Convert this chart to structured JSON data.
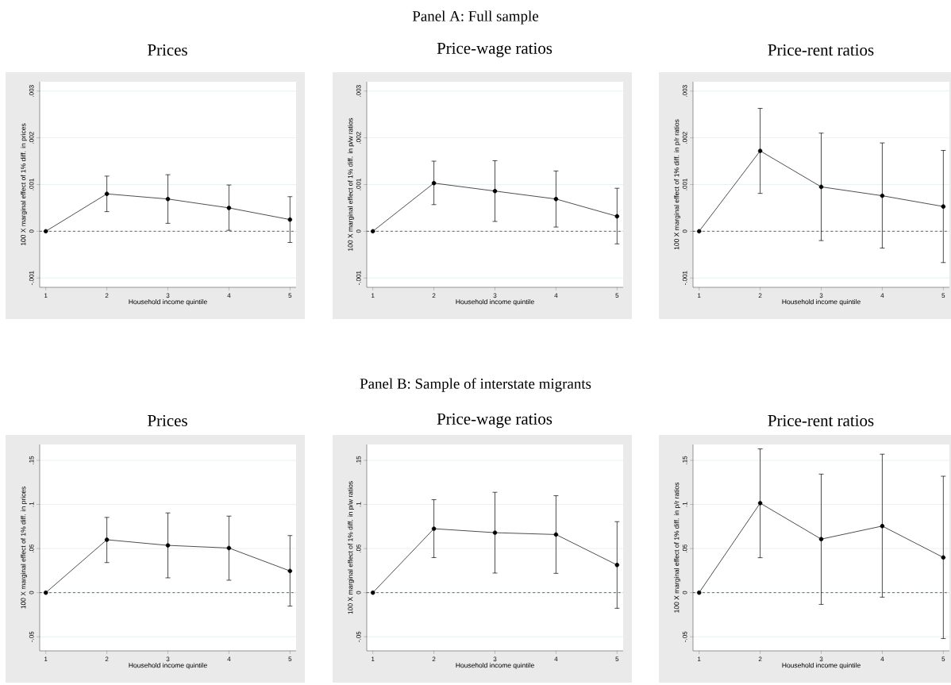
{
  "chart_data": [
    {
      "type": "line",
      "title": "Prices",
      "annotations": [
        "Panel A: Full sample"
      ],
      "xlabel": "Household income quintile",
      "ylabel": "100 X marginal effect of 1% diff. in prices",
      "color": "#000000",
      "marker": "circle",
      "line_style": "solid",
      "grid": "y",
      "x": [
        1,
        2,
        3,
        4,
        5
      ],
      "values": [
        0,
        0.0008,
        0.00069,
        0.0005,
        0.00025
      ],
      "errors": [
        null,
        [
          0.00042,
          0.00118
        ],
        [
          0.00017,
          0.00121
        ],
        [
          2e-05,
          0.00099
        ],
        [
          -0.00024,
          0.00074
        ]
      ],
      "xlim": [
        0.9,
        5.1
      ],
      "xticks": [
        1,
        2,
        3,
        4,
        5
      ],
      "ylim": [
        -0.0012,
        0.0032
      ],
      "yticks": [
        {
          "value": -0.001,
          "label": "-.001"
        },
        0,
        {
          "value": 0.001,
          "label": ".001"
        },
        {
          "value": 0.002,
          "label": ".002"
        },
        {
          "value": 0.003,
          "label": ".003"
        }
      ],
      "ref_lines": [
        {
          "axis": "y",
          "value": 0,
          "line_style": "dashed"
        }
      ]
    },
    {
      "type": "line",
      "title": "Price-wage ratios",
      "xlabel": "Household income quintile",
      "ylabel": "100 X marginal effect of 1% diff. in p/w ratios",
      "color": "#000000",
      "marker": "circle",
      "line_style": "solid",
      "grid": "y",
      "x": [
        1,
        2,
        3,
        4,
        5
      ],
      "values": [
        0,
        0.00103,
        0.00086,
        0.00069,
        0.00032
      ],
      "errors": [
        null,
        [
          0.00057,
          0.0015
        ],
        [
          0.00021,
          0.00151
        ],
        [
          9e-05,
          0.00129
        ],
        [
          -0.00027,
          0.00092
        ]
      ],
      "xlim": [
        0.9,
        5.1
      ],
      "xticks": [
        1,
        2,
        3,
        4,
        5
      ],
      "ylim": [
        -0.0012,
        0.0032
      ],
      "yticks": [
        {
          "value": -0.001,
          "label": "-.001"
        },
        0,
        {
          "value": 0.001,
          "label": ".001"
        },
        {
          "value": 0.002,
          "label": ".002"
        },
        {
          "value": 0.003,
          "label": ".003"
        }
      ],
      "ref_lines": [
        {
          "axis": "y",
          "value": 0,
          "line_style": "dashed"
        }
      ]
    },
    {
      "type": "line",
      "title": "Price-rent ratios",
      "xlabel": "Household income quintile",
      "ylabel": "100 X marginal effect of 1% diff. in p/r ratios",
      "color": "#000000",
      "marker": "circle",
      "line_style": "solid",
      "grid": "y",
      "x": [
        1,
        2,
        3,
        4,
        5
      ],
      "values": [
        0,
        0.00172,
        0.00095,
        0.00076,
        0.00053
      ],
      "errors": [
        null,
        [
          0.00081,
          0.00263
        ],
        [
          -0.0002,
          0.0021
        ],
        [
          -0.00036,
          0.00189
        ],
        [
          -0.00067,
          0.00173
        ]
      ],
      "xlim": [
        0.9,
        5.1
      ],
      "xticks": [
        1,
        2,
        3,
        4,
        5
      ],
      "ylim": [
        -0.0012,
        0.0032
      ],
      "yticks": [
        {
          "value": -0.001,
          "label": "-.001"
        },
        0,
        {
          "value": 0.001,
          "label": ".001"
        },
        {
          "value": 0.002,
          "label": ".002"
        },
        {
          "value": 0.003,
          "label": ".003"
        }
      ],
      "ref_lines": [
        {
          "axis": "y",
          "value": 0,
          "line_style": "dashed"
        }
      ]
    },
    {
      "type": "line",
      "title": "Prices",
      "annotations": [
        "Panel B: Sample of interstate migrants"
      ],
      "xlabel": "Household income quintile",
      "ylabel": "100 X marginal effect of 1% diff. in prices",
      "color": "#000000",
      "marker": "circle",
      "line_style": "solid",
      "grid": "y",
      "x": [
        1,
        2,
        3,
        4,
        5
      ],
      "values": [
        0,
        0.06,
        0.0536,
        0.0506,
        0.0246
      ],
      "errors": [
        null,
        [
          0.0341,
          0.0853
        ],
        [
          0.0168,
          0.0904
        ],
        [
          0.0141,
          0.0868
        ],
        [
          -0.0153,
          0.0647
        ]
      ],
      "xlim": [
        0.9,
        5.1
      ],
      "xticks": [
        1,
        2,
        3,
        4,
        5
      ],
      "ylim": [
        -0.066,
        0.168
      ],
      "yticks": [
        {
          "value": -0.05,
          "label": "-.05"
        },
        0,
        {
          "value": 0.05,
          "label": ".05"
        },
        {
          "value": 0.1,
          "label": ".1"
        },
        {
          "value": 0.15,
          "label": ".15"
        }
      ],
      "ref_lines": [
        {
          "axis": "y",
          "value": 0,
          "line_style": "dashed"
        }
      ]
    },
    {
      "type": "line",
      "title": "Price-wage ratios",
      "xlabel": "Household income quintile",
      "ylabel": "100 X marginal effect of 1% diff. in p/w ratios",
      "color": "#000000",
      "marker": "circle",
      "line_style": "solid",
      "grid": "y",
      "x": [
        1,
        2,
        3,
        4,
        5
      ],
      "values": [
        0,
        0.0725,
        0.068,
        0.0659,
        0.0314
      ],
      "errors": [
        null,
        [
          0.0398,
          0.1054
        ],
        [
          0.0222,
          0.1138
        ],
        [
          0.0219,
          0.1099
        ],
        [
          -0.0177,
          0.0805
        ]
      ],
      "xlim": [
        0.9,
        5.1
      ],
      "xticks": [
        1,
        2,
        3,
        4,
        5
      ],
      "ylim": [
        -0.066,
        0.168
      ],
      "yticks": [
        {
          "value": -0.05,
          "label": "-.05"
        },
        0,
        {
          "value": 0.05,
          "label": ".05"
        },
        {
          "value": 0.1,
          "label": ".1"
        },
        {
          "value": 0.15,
          "label": ".15"
        }
      ],
      "ref_lines": [
        {
          "axis": "y",
          "value": 0,
          "line_style": "dashed"
        }
      ]
    },
    {
      "type": "line",
      "title": "Price-rent ratios",
      "xlabel": "Household income quintile",
      "ylabel": "100 X marginal effect of 1% diff. in p/r ratios",
      "color": "#000000",
      "marker": "circle",
      "line_style": "solid",
      "grid": "y",
      "x": [
        1,
        2,
        3,
        4,
        5
      ],
      "values": [
        0,
        0.1015,
        0.0607,
        0.0755,
        0.0399
      ],
      "errors": [
        null,
        [
          0.0396,
          0.163
        ],
        [
          -0.0133,
          0.1344
        ],
        [
          -0.0051,
          0.157
        ],
        [
          -0.052,
          0.132
        ]
      ],
      "xlim": [
        0.9,
        5.1
      ],
      "xticks": [
        1,
        2,
        3,
        4,
        5
      ],
      "ylim": [
        -0.066,
        0.168
      ],
      "yticks": [
        {
          "value": -0.05,
          "label": "-.05"
        },
        0,
        {
          "value": 0.05,
          "label": ".05"
        },
        {
          "value": 0.1,
          "label": ".1"
        },
        {
          "value": 0.15,
          "label": ".15"
        }
      ],
      "ref_lines": [
        {
          "axis": "y",
          "value": 0,
          "line_style": "dashed"
        }
      ]
    }
  ]
}
